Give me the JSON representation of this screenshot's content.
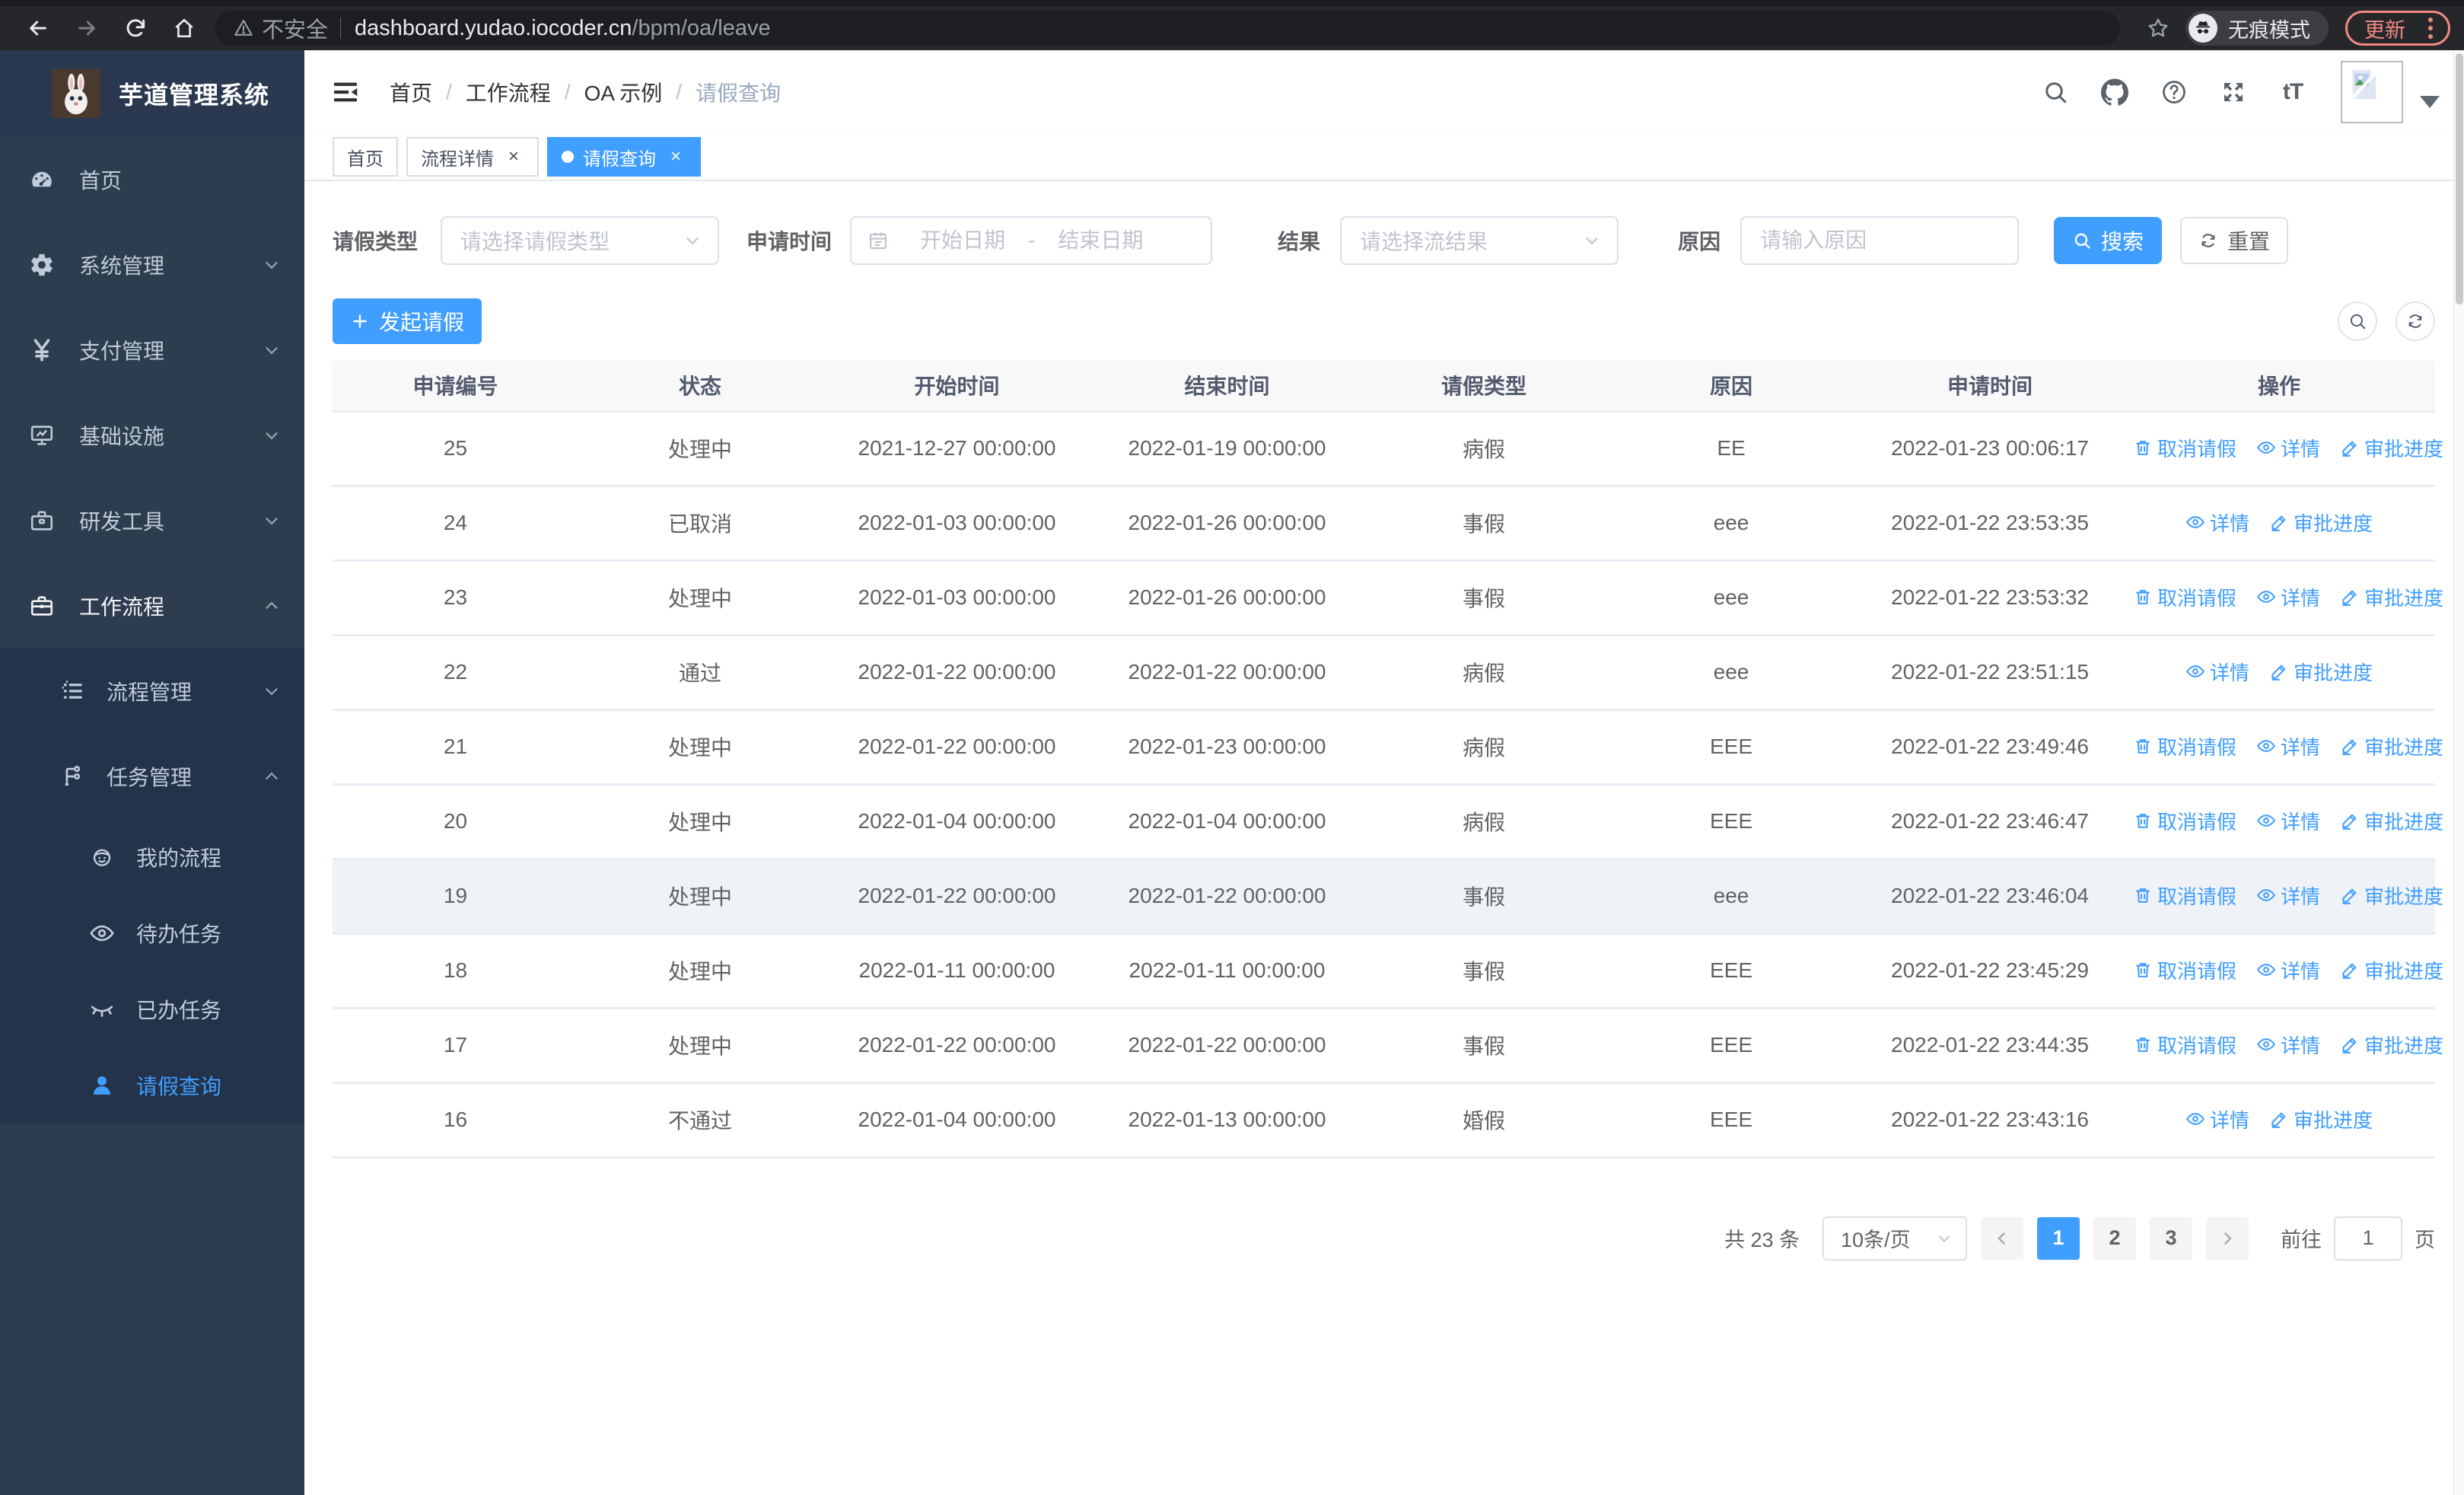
{
  "browser": {
    "security_label": "不安全",
    "url_host": "dashboard.yudao.iocoder.cn",
    "url_path": "/bpm/oa/leave",
    "incognito_label": "无痕模式",
    "update_label": "更新"
  },
  "colors": {
    "primary": "#409EFF",
    "sidebar_bg": "#2e3c50",
    "submenu_bg": "#24324a",
    "update_chip": "#ef8a80",
    "table_header_bg": "#f8f8f9",
    "row_highlight": "#eff2f7"
  },
  "sidebar": {
    "title": "芋道管理系统",
    "menu": [
      {
        "id": "home",
        "label": "首页",
        "icon": "dashboard",
        "level": 1
      },
      {
        "id": "system",
        "label": "系统管理",
        "icon": "gear",
        "level": 1,
        "chevron": "down"
      },
      {
        "id": "payment",
        "label": "支付管理",
        "icon": "yen",
        "level": 1,
        "chevron": "down"
      },
      {
        "id": "infra",
        "label": "基础设施",
        "icon": "monitor",
        "level": 1,
        "chevron": "down"
      },
      {
        "id": "devtools",
        "label": "研发工具",
        "icon": "toolbox",
        "level": 1,
        "chevron": "down"
      },
      {
        "id": "workflow",
        "label": "工作流程",
        "icon": "briefcase",
        "level": 1,
        "chevron": "up",
        "open": true
      },
      {
        "id": "process-mgmt",
        "label": "流程管理",
        "icon": "list",
        "level": 2,
        "chevron": "down",
        "sub": true
      },
      {
        "id": "task-mgmt",
        "label": "任务管理",
        "icon": "tree",
        "level": 2,
        "chevron": "up",
        "open": true,
        "sub": true
      },
      {
        "id": "my-process",
        "label": "我的流程",
        "icon": "robot",
        "level": 3,
        "sub": true
      },
      {
        "id": "todo-task",
        "label": "待办任务",
        "icon": "eye-open",
        "level": 3,
        "sub": true
      },
      {
        "id": "done-task",
        "label": "已办任务",
        "icon": "eye-closed",
        "level": 3,
        "sub": true
      },
      {
        "id": "leave-query",
        "label": "请假查询",
        "icon": "user",
        "level": 3,
        "sub": true,
        "active": true
      }
    ]
  },
  "header": {
    "breadcrumb": [
      "首页",
      "工作流程",
      "OA 示例",
      "请假查询"
    ],
    "font_icon_label": "tT"
  },
  "tabs": [
    {
      "label": "首页",
      "closable": false,
      "active": false
    },
    {
      "label": "流程详情",
      "closable": true,
      "active": false
    },
    {
      "label": "请假查询",
      "closable": true,
      "active": true
    }
  ],
  "filters": {
    "leave_type_label": "请假类型",
    "leave_type_placeholder": "请选择请假类型",
    "apply_time_label": "申请时间",
    "start_date_placeholder": "开始日期",
    "date_separator": "-",
    "end_date_placeholder": "结束日期",
    "result_label": "结果",
    "result_placeholder": "请选择流结果",
    "reason_label": "原因",
    "reason_placeholder": "请输入原因",
    "search_label": "搜索",
    "reset_label": "重置"
  },
  "toolbar": {
    "create_label": "发起请假"
  },
  "table": {
    "columns": [
      "申请编号",
      "状态",
      "开始时间",
      "结束时间",
      "请假类型",
      "原因",
      "申请时间",
      "操作"
    ],
    "action_defs": {
      "cancel": {
        "label": "取消请假",
        "icon": "trash"
      },
      "detail": {
        "label": "详情",
        "icon": "eye"
      },
      "progress": {
        "label": "审批进度",
        "icon": "pencil"
      }
    },
    "rows": [
      {
        "id": "25",
        "status": "处理中",
        "start": "2021-12-27 00:00:00",
        "end": "2022-01-19 00:00:00",
        "type": "病假",
        "reason": "EE",
        "applied": "2022-01-23 00:06:17",
        "actions": [
          "cancel",
          "detail",
          "progress"
        ],
        "highlight": false
      },
      {
        "id": "24",
        "status": "已取消",
        "start": "2022-01-03 00:00:00",
        "end": "2022-01-26 00:00:00",
        "type": "事假",
        "reason": "eee",
        "applied": "2022-01-22 23:53:35",
        "actions": [
          "detail",
          "progress"
        ],
        "highlight": false
      },
      {
        "id": "23",
        "status": "处理中",
        "start": "2022-01-03 00:00:00",
        "end": "2022-01-26 00:00:00",
        "type": "事假",
        "reason": "eee",
        "applied": "2022-01-22 23:53:32",
        "actions": [
          "cancel",
          "detail",
          "progress"
        ],
        "highlight": false
      },
      {
        "id": "22",
        "status": "通过",
        "start": "2022-01-22 00:00:00",
        "end": "2022-01-22 00:00:00",
        "type": "病假",
        "reason": "eee",
        "applied": "2022-01-22 23:51:15",
        "actions": [
          "detail",
          "progress"
        ],
        "highlight": false
      },
      {
        "id": "21",
        "status": "处理中",
        "start": "2022-01-22 00:00:00",
        "end": "2022-01-23 00:00:00",
        "type": "病假",
        "reason": "EEE",
        "applied": "2022-01-22 23:49:46",
        "actions": [
          "cancel",
          "detail",
          "progress"
        ],
        "highlight": false
      },
      {
        "id": "20",
        "status": "处理中",
        "start": "2022-01-04 00:00:00",
        "end": "2022-01-04 00:00:00",
        "type": "病假",
        "reason": "EEE",
        "applied": "2022-01-22 23:46:47",
        "actions": [
          "cancel",
          "detail",
          "progress"
        ],
        "highlight": false
      },
      {
        "id": "19",
        "status": "处理中",
        "start": "2022-01-22 00:00:00",
        "end": "2022-01-22 00:00:00",
        "type": "事假",
        "reason": "eee",
        "applied": "2022-01-22 23:46:04",
        "actions": [
          "cancel",
          "detail",
          "progress"
        ],
        "highlight": true
      },
      {
        "id": "18",
        "status": "处理中",
        "start": "2022-01-11 00:00:00",
        "end": "2022-01-11 00:00:00",
        "type": "事假",
        "reason": "EEE",
        "applied": "2022-01-22 23:45:29",
        "actions": [
          "cancel",
          "detail",
          "progress"
        ],
        "highlight": false
      },
      {
        "id": "17",
        "status": "处理中",
        "start": "2022-01-22 00:00:00",
        "end": "2022-01-22 00:00:00",
        "type": "事假",
        "reason": "EEE",
        "applied": "2022-01-22 23:44:35",
        "actions": [
          "cancel",
          "detail",
          "progress"
        ],
        "highlight": false
      },
      {
        "id": "16",
        "status": "不通过",
        "start": "2022-01-04 00:00:00",
        "end": "2022-01-13 00:00:00",
        "type": "婚假",
        "reason": "EEE",
        "applied": "2022-01-22 23:43:16",
        "actions": [
          "detail",
          "progress"
        ],
        "highlight": false
      }
    ]
  },
  "pagination": {
    "total_label": "共 23 条",
    "page_size": "10条/页",
    "pages": [
      {
        "label": "1",
        "active": true
      },
      {
        "label": "2",
        "active": false
      },
      {
        "label": "3",
        "active": false
      }
    ],
    "goto_label": "前往",
    "goto_value": "1",
    "page_unit": "页"
  }
}
